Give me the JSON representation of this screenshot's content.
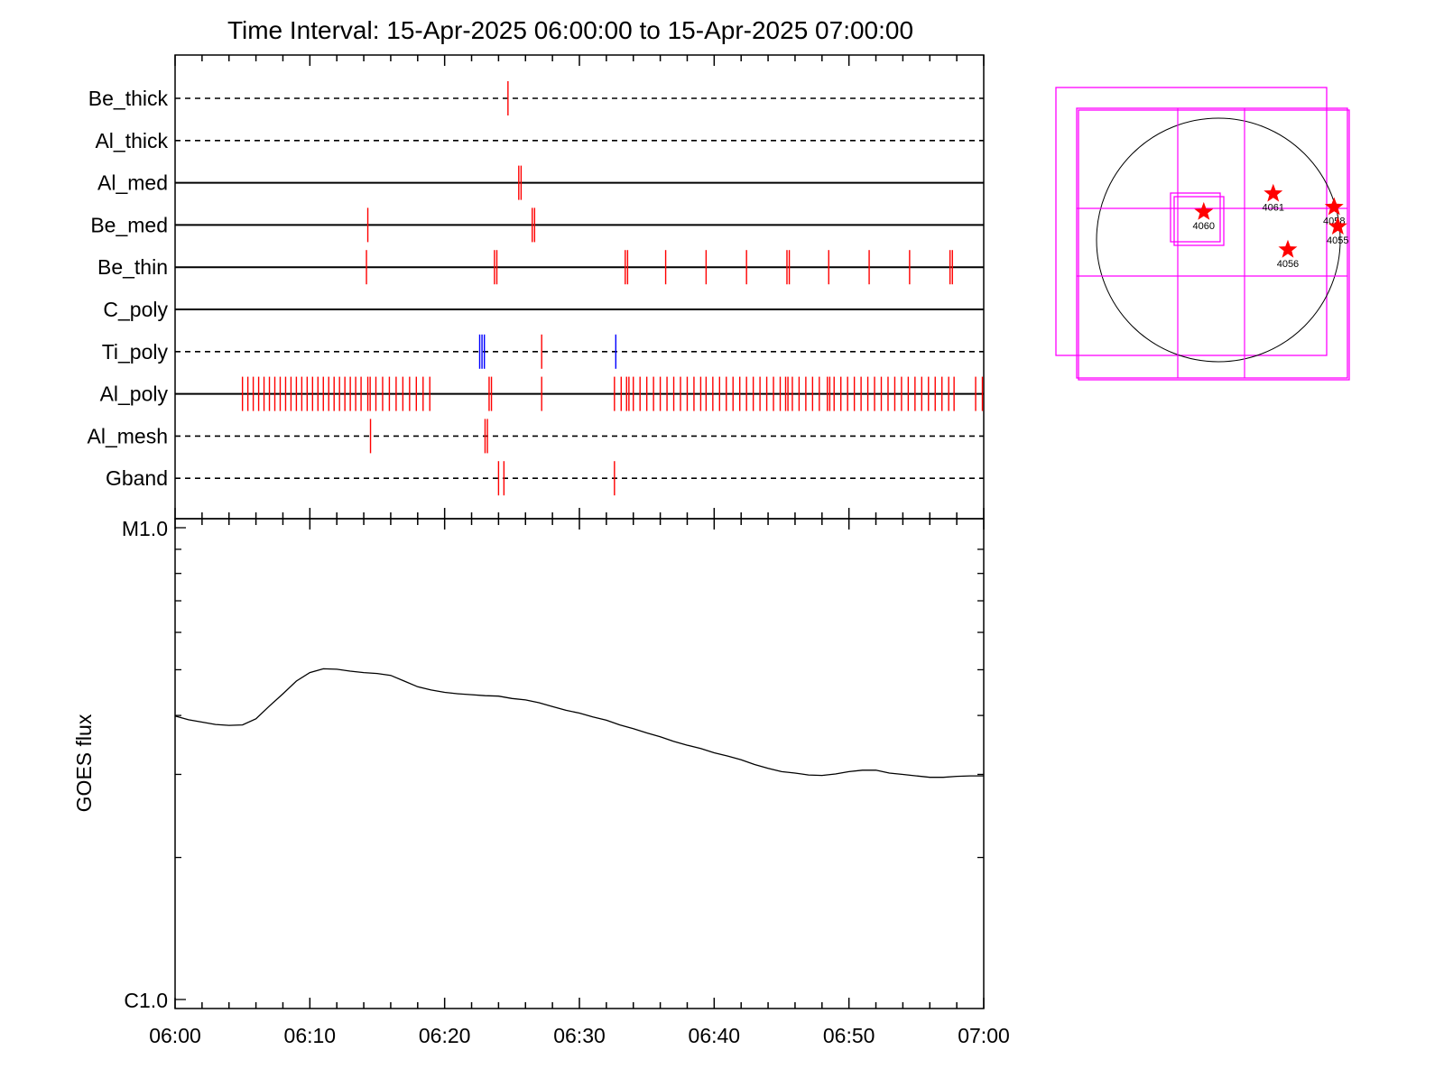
{
  "title": "Time Interval: 15-Apr-2025 06:00:00 to 15-Apr-2025 07:00:00",
  "colors": {
    "axis": "#000000",
    "event_red": "#ff0000",
    "event_blue": "#0000ff",
    "fov": "#ff00ff",
    "star": "#ff0000"
  },
  "chart_data": [
    {
      "type": "timeline",
      "x_unit": "minutes after 06:00",
      "xlim": [
        0,
        60
      ],
      "rows": [
        {
          "label": "Be_thick",
          "line": "dashed",
          "events": [
            {
              "t": 24.7,
              "color": "red",
              "n": 1
            }
          ]
        },
        {
          "label": "Al_thick",
          "line": "dashed",
          "events": []
        },
        {
          "label": "Al_med",
          "line": "solid",
          "events": [
            {
              "t": 25.5,
              "color": "red",
              "n": 2
            }
          ]
        },
        {
          "label": "Be_med",
          "line": "solid",
          "events": [
            {
              "t": 14.3,
              "color": "red",
              "n": 1
            },
            {
              "t": 26.5,
              "color": "red",
              "n": 2
            }
          ]
        },
        {
          "label": "Be_thin",
          "line": "solid",
          "events": [
            {
              "t": 14.2,
              "color": "red",
              "n": 1
            },
            {
              "t": 23.7,
              "color": "red",
              "n": 2
            },
            {
              "t": 33.4,
              "color": "red",
              "n": 2
            },
            {
              "t": 36.4,
              "color": "red",
              "n": 1
            },
            {
              "t": 39.4,
              "color": "red",
              "n": 1
            },
            {
              "t": 42.4,
              "color": "red",
              "n": 1
            },
            {
              "t": 45.4,
              "color": "red",
              "n": 2
            },
            {
              "t": 48.5,
              "color": "red",
              "n": 1
            },
            {
              "t": 51.5,
              "color": "red",
              "n": 1
            },
            {
              "t": 54.5,
              "color": "red",
              "n": 1
            },
            {
              "t": 57.5,
              "color": "red",
              "n": 2
            }
          ]
        },
        {
          "label": "C_poly",
          "line": "solid",
          "events": []
        },
        {
          "label": "Ti_poly",
          "line": "dashed",
          "events": [
            {
              "t": 22.6,
              "color": "blue",
              "n": 3
            },
            {
              "t": 27.2,
              "color": "red",
              "n": 1
            },
            {
              "t": 32.7,
              "color": "blue",
              "n": 1
            }
          ]
        },
        {
          "label": "Al_poly",
          "line": "solid",
          "events": [
            {
              "t": 5.0,
              "color": "red",
              "n": 1
            },
            {
              "t": 5.4,
              "color": "red",
              "n": 1
            },
            {
              "t": 5.8,
              "color": "red",
              "n": 1
            },
            {
              "t": 6.2,
              "color": "red",
              "n": 1
            },
            {
              "t": 6.6,
              "color": "red",
              "n": 1
            },
            {
              "t": 7.0,
              "color": "red",
              "n": 1
            },
            {
              "t": 7.4,
              "color": "red",
              "n": 1
            },
            {
              "t": 7.8,
              "color": "red",
              "n": 1
            },
            {
              "t": 8.2,
              "color": "red",
              "n": 1
            },
            {
              "t": 8.6,
              "color": "red",
              "n": 1
            },
            {
              "t": 9.0,
              "color": "red",
              "n": 1
            },
            {
              "t": 9.4,
              "color": "red",
              "n": 1
            },
            {
              "t": 9.8,
              "color": "red",
              "n": 1
            },
            {
              "t": 10.2,
              "color": "red",
              "n": 1
            },
            {
              "t": 10.6,
              "color": "red",
              "n": 1
            },
            {
              "t": 11.0,
              "color": "red",
              "n": 1
            },
            {
              "t": 11.4,
              "color": "red",
              "n": 1
            },
            {
              "t": 11.8,
              "color": "red",
              "n": 1
            },
            {
              "t": 12.2,
              "color": "red",
              "n": 1
            },
            {
              "t": 12.6,
              "color": "red",
              "n": 1
            },
            {
              "t": 13.0,
              "color": "red",
              "n": 1
            },
            {
              "t": 13.4,
              "color": "red",
              "n": 1
            },
            {
              "t": 13.8,
              "color": "red",
              "n": 1
            },
            {
              "t": 14.3,
              "color": "red",
              "n": 2
            },
            {
              "t": 14.9,
              "color": "red",
              "n": 1
            },
            {
              "t": 15.4,
              "color": "red",
              "n": 1
            },
            {
              "t": 15.9,
              "color": "red",
              "n": 1
            },
            {
              "t": 16.4,
              "color": "red",
              "n": 1
            },
            {
              "t": 16.9,
              "color": "red",
              "n": 1
            },
            {
              "t": 17.4,
              "color": "red",
              "n": 1
            },
            {
              "t": 17.9,
              "color": "red",
              "n": 1
            },
            {
              "t": 18.4,
              "color": "red",
              "n": 1
            },
            {
              "t": 18.9,
              "color": "red",
              "n": 1
            },
            {
              "t": 23.3,
              "color": "red",
              "n": 2
            },
            {
              "t": 27.2,
              "color": "red",
              "n": 1
            },
            {
              "t": 32.6,
              "color": "red",
              "n": 1
            },
            {
              "t": 33.1,
              "color": "red",
              "n": 1
            },
            {
              "t": 33.5,
              "color": "red",
              "n": 2
            },
            {
              "t": 34.0,
              "color": "red",
              "n": 1
            },
            {
              "t": 34.5,
              "color": "red",
              "n": 1
            },
            {
              "t": 35.0,
              "color": "red",
              "n": 1
            },
            {
              "t": 35.5,
              "color": "red",
              "n": 1
            },
            {
              "t": 36.0,
              "color": "red",
              "n": 1
            },
            {
              "t": 36.5,
              "color": "red",
              "n": 1
            },
            {
              "t": 37.0,
              "color": "red",
              "n": 1
            },
            {
              "t": 37.5,
              "color": "red",
              "n": 1
            },
            {
              "t": 38.0,
              "color": "red",
              "n": 1
            },
            {
              "t": 38.5,
              "color": "red",
              "n": 1
            },
            {
              "t": 39.0,
              "color": "red",
              "n": 1
            },
            {
              "t": 39.4,
              "color": "red",
              "n": 1
            },
            {
              "t": 39.9,
              "color": "red",
              "n": 1
            },
            {
              "t": 40.4,
              "color": "red",
              "n": 1
            },
            {
              "t": 40.9,
              "color": "red",
              "n": 1
            },
            {
              "t": 41.4,
              "color": "red",
              "n": 1
            },
            {
              "t": 41.9,
              "color": "red",
              "n": 1
            },
            {
              "t": 42.4,
              "color": "red",
              "n": 1
            },
            {
              "t": 42.9,
              "color": "red",
              "n": 1
            },
            {
              "t": 43.4,
              "color": "red",
              "n": 1
            },
            {
              "t": 43.9,
              "color": "red",
              "n": 1
            },
            {
              "t": 44.4,
              "color": "red",
              "n": 1
            },
            {
              "t": 44.9,
              "color": "red",
              "n": 1
            },
            {
              "t": 45.3,
              "color": "red",
              "n": 2
            },
            {
              "t": 45.8,
              "color": "red",
              "n": 1
            },
            {
              "t": 46.3,
              "color": "red",
              "n": 1
            },
            {
              "t": 46.8,
              "color": "red",
              "n": 1
            },
            {
              "t": 47.3,
              "color": "red",
              "n": 1
            },
            {
              "t": 47.8,
              "color": "red",
              "n": 1
            },
            {
              "t": 48.4,
              "color": "red",
              "n": 2
            },
            {
              "t": 48.9,
              "color": "red",
              "n": 1
            },
            {
              "t": 49.4,
              "color": "red",
              "n": 1
            },
            {
              "t": 49.9,
              "color": "red",
              "n": 1
            },
            {
              "t": 50.4,
              "color": "red",
              "n": 1
            },
            {
              "t": 50.9,
              "color": "red",
              "n": 1
            },
            {
              "t": 51.4,
              "color": "red",
              "n": 1
            },
            {
              "t": 51.9,
              "color": "red",
              "n": 1
            },
            {
              "t": 52.4,
              "color": "red",
              "n": 1
            },
            {
              "t": 52.9,
              "color": "red",
              "n": 1
            },
            {
              "t": 53.4,
              "color": "red",
              "n": 1
            },
            {
              "t": 53.9,
              "color": "red",
              "n": 1
            },
            {
              "t": 54.4,
              "color": "red",
              "n": 1
            },
            {
              "t": 54.9,
              "color": "red",
              "n": 1
            },
            {
              "t": 55.4,
              "color": "red",
              "n": 1
            },
            {
              "t": 55.9,
              "color": "red",
              "n": 1
            },
            {
              "t": 56.4,
              "color": "red",
              "n": 1
            },
            {
              "t": 56.9,
              "color": "red",
              "n": 1
            },
            {
              "t": 57.4,
              "color": "red",
              "n": 1
            },
            {
              "t": 57.8,
              "color": "red",
              "n": 1
            },
            {
              "t": 59.4,
              "color": "red",
              "n": 1
            },
            {
              "t": 59.9,
              "color": "red",
              "n": 1
            }
          ]
        },
        {
          "label": "Al_mesh",
          "line": "dashed",
          "events": [
            {
              "t": 14.5,
              "color": "red",
              "n": 1
            },
            {
              "t": 23.0,
              "color": "red",
              "n": 2
            }
          ]
        },
        {
          "label": "Gband",
          "line": "dashed",
          "events": [
            {
              "t": 24.0,
              "color": "red",
              "n": 1
            },
            {
              "t": 24.4,
              "color": "red",
              "n": 1
            },
            {
              "t": 32.6,
              "color": "red",
              "n": 1
            }
          ]
        }
      ]
    },
    {
      "type": "line",
      "ylabel": "GOES flux",
      "yscale": "log",
      "ylim": [
        "C1.0",
        "M1.0"
      ],
      "yticks": [
        "M1.0",
        "C1.0"
      ],
      "xlim": [
        0,
        60
      ],
      "xticks": [
        {
          "t": 0,
          "label": "06:00"
        },
        {
          "t": 10,
          "label": "06:10"
        },
        {
          "t": 20,
          "label": "06:20"
        },
        {
          "t": 30,
          "label": "06:30"
        },
        {
          "t": 40,
          "label": "06:40"
        },
        {
          "t": 50,
          "label": "06:50"
        },
        {
          "t": 60,
          "label": "07:00"
        }
      ],
      "series": [
        {
          "x": [
            0,
            1,
            2,
            3,
            4,
            5,
            6,
            7,
            8,
            9,
            10,
            11,
            12,
            13,
            14,
            15,
            16,
            17,
            18,
            19,
            20,
            21,
            22,
            23,
            24,
            25,
            26,
            27,
            28,
            29,
            30,
            31,
            32,
            33,
            34,
            35,
            36,
            37,
            38,
            39,
            40,
            41,
            42,
            43,
            44,
            45,
            46,
            47,
            48,
            49,
            50,
            51,
            52,
            53,
            54,
            55,
            56,
            57,
            58,
            59,
            60
          ],
          "y_log_fraction": [
            0.601,
            0.593,
            0.588,
            0.583,
            0.581,
            0.582,
            0.595,
            0.622,
            0.648,
            0.675,
            0.693,
            0.701,
            0.7,
            0.696,
            0.693,
            0.691,
            0.687,
            0.675,
            0.663,
            0.656,
            0.651,
            0.648,
            0.646,
            0.644,
            0.643,
            0.638,
            0.635,
            0.629,
            0.621,
            0.613,
            0.607,
            0.599,
            0.592,
            0.582,
            0.574,
            0.565,
            0.557,
            0.547,
            0.539,
            0.532,
            0.523,
            0.516,
            0.508,
            0.498,
            0.49,
            0.483,
            0.48,
            0.476,
            0.475,
            0.478,
            0.483,
            0.486,
            0.486,
            0.48,
            0.477,
            0.474,
            0.471,
            0.471,
            0.473,
            0.474,
            0.474
          ]
        }
      ]
    },
    {
      "type": "scatter",
      "description_free": true,
      "points": [
        {
          "label": "4060",
          "x": -0.12,
          "y": 0.23
        },
        {
          "label": "4061",
          "x": 0.45,
          "y": 0.38
        },
        {
          "label": "4058",
          "x": 0.95,
          "y": 0.27
        },
        {
          "label": "4055",
          "x": 0.98,
          "y": 0.11
        },
        {
          "label": "4056",
          "x": 0.57,
          "y": -0.08
        }
      ]
    }
  ]
}
